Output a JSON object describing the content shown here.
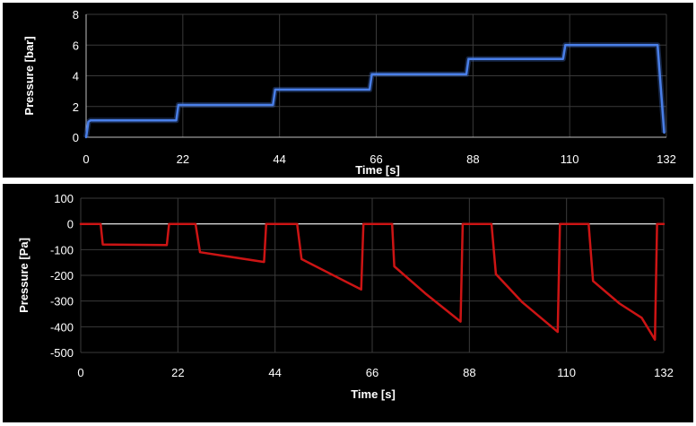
{
  "chart_data": [
    {
      "type": "line",
      "title": "",
      "xlabel": "Time [s]",
      "ylabel": "Pressure [bar]",
      "xlim": [
        0,
        132
      ],
      "ylim": [
        0,
        8
      ],
      "xticks": [
        0,
        22,
        44,
        66,
        88,
        110,
        132
      ],
      "yticks": [
        0,
        2,
        4,
        6,
        8
      ],
      "grid": true,
      "legend": "none",
      "line_color": "#4a7fe8",
      "series": [
        {
          "name": "",
          "x": [
            0,
            0.5,
            1,
            20.5,
            21,
            42.5,
            43,
            64.5,
            65,
            86.5,
            87,
            108.5,
            109,
            130,
            131.5
          ],
          "y": [
            0,
            1.0,
            1.1,
            1.1,
            2.1,
            2.1,
            3.1,
            3.1,
            4.1,
            4.1,
            5.1,
            5.1,
            6.0,
            6.0,
            0.3
          ]
        }
      ]
    },
    {
      "type": "line",
      "title": "",
      "xlabel": "Time [s]",
      "ylabel": "Pressure [Pa]",
      "xlim": [
        0,
        132
      ],
      "ylim": [
        -500,
        100
      ],
      "xticks": [
        0,
        22,
        44,
        66,
        88,
        110,
        132
      ],
      "yticks": [
        100,
        0,
        -100,
        -200,
        -300,
        -400,
        -500
      ],
      "grid": true,
      "legend": "none",
      "line_color": "#cc1414",
      "series": [
        {
          "name": "",
          "x": [
            0,
            4.5,
            5,
            19.5,
            20,
            26,
            27,
            41.5,
            42,
            49,
            50,
            63.5,
            64,
            70.5,
            71,
            78,
            86,
            86.5,
            93,
            94,
            100,
            108,
            108.5,
            115,
            116,
            122,
            127,
            130,
            130.5,
            132
          ],
          "y": [
            0,
            0,
            -80,
            -82,
            0,
            0,
            -110,
            -148,
            0,
            0,
            -137,
            -255,
            0,
            0,
            -165,
            -270,
            -380,
            0,
            0,
            -195,
            -305,
            -420,
            0,
            0,
            -222,
            -310,
            -365,
            -450,
            0,
            0
          ]
        }
      ]
    }
  ]
}
